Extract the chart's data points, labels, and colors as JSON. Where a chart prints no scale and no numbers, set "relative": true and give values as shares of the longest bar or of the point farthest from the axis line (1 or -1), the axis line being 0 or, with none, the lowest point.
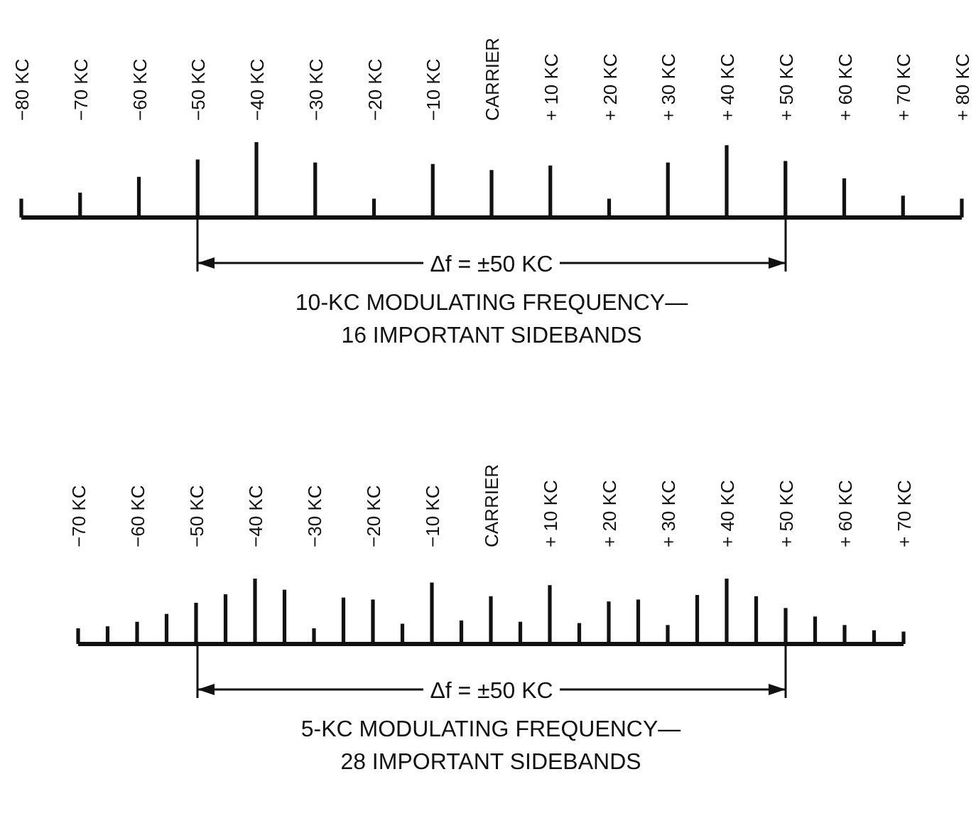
{
  "chart_data": [
    {
      "type": "bar",
      "relative": true,
      "title": "10-KC MODULATING FREQUENCY—",
      "subtitle": "16 IMPORTANT SIDEBANDS",
      "categories": [
        "−80 KC",
        "−70 KC",
        "−60 KC",
        "−50 KC",
        "−40 KC",
        "−30 KC",
        "−20 KC",
        "−10 KC",
        "CARRIER",
        "+ 10 KC",
        "+ 20 KC",
        "+ 30 KC",
        "+ 40 KC",
        "+ 50 KC",
        "+ 60 KC",
        "+ 70 KC",
        "+ 80 KC"
      ],
      "values": [
        0.25,
        0.33,
        0.54,
        0.77,
        1,
        0.73,
        0.25,
        0.71,
        0.63,
        0.69,
        0.25,
        0.73,
        0.96,
        0.75,
        0.52,
        0.29,
        0.25
      ],
      "color": "#111111",
      "annotations": [
        "Δf = ±50 KC"
      ]
    },
    {
      "type": "bar",
      "relative": true,
      "title": "5-KC MODULATING FREQUENCY—",
      "subtitle": "28 IMPORTANT SIDEBANDS",
      "categories": [
        "−70 KC",
        null,
        "−60 KC",
        null,
        "−50 KC",
        null,
        "−40 KC",
        null,
        "−30 KC",
        null,
        "−20 KC",
        null,
        "−10 KC",
        null,
        "CARRIER",
        null,
        "+ 10 KC",
        null,
        "+ 20 KC",
        null,
        "+ 30 KC",
        null,
        "+ 40 KC",
        null,
        "+ 50 KC",
        null,
        "+ 60 KC",
        null,
        "+ 70 KC"
      ],
      "values": [
        0.24,
        0.27,
        0.34,
        0.46,
        0.63,
        0.76,
        1,
        0.83,
        0.24,
        0.71,
        0.68,
        0.31,
        0.94,
        0.36,
        0.73,
        0.34,
        0.9,
        0.32,
        0.65,
        0.68,
        0.29,
        0.75,
        1,
        0.73,
        0.55,
        0.42,
        0.29,
        0.21,
        0.19
      ],
      "color": "#111111",
      "annotations": [
        "Δf = ±50 KC"
      ]
    }
  ]
}
